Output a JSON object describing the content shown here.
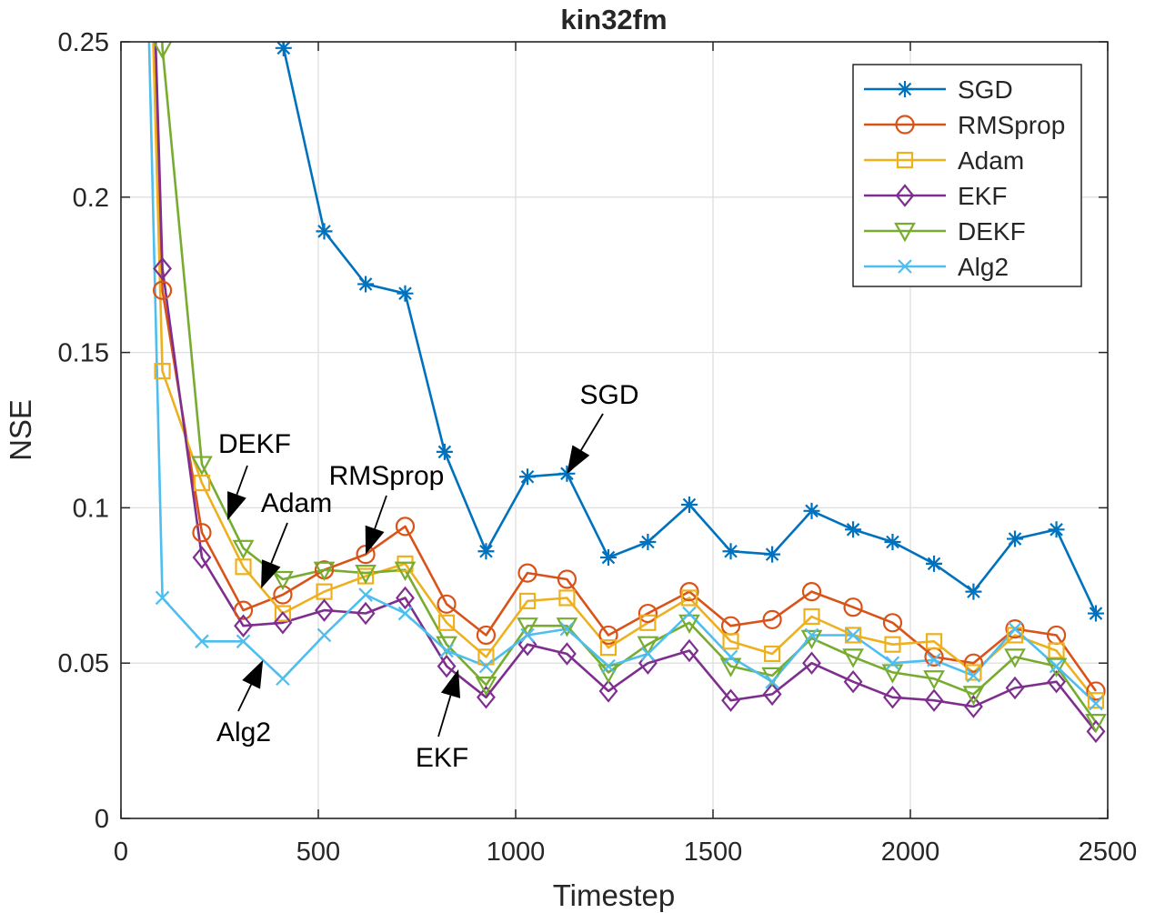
{
  "chart_data": {
    "type": "line",
    "title": "kin32fm",
    "xlabel": "Timestep",
    "ylabel": "NSE",
    "xlim": [
      0,
      2500
    ],
    "ylim": [
      0,
      0.25
    ],
    "xticks": [
      0,
      500,
      1000,
      1500,
      2000,
      2500
    ],
    "yticks": [
      0,
      0.05,
      0.1,
      0.15,
      0.2,
      0.25
    ],
    "xtick_labels": [
      "0",
      "500",
      "1000",
      "1500",
      "2000",
      "2500"
    ],
    "ytick_labels": [
      "0",
      "0.05",
      "0.1",
      "0.15",
      "0.2",
      "0.25"
    ],
    "grid": true,
    "legend_position": "top-right",
    "series": [
      {
        "name": "SGD",
        "color": "#0072BD",
        "marker": "asterisk",
        "line_points": [
          [
            345,
            0.5
          ],
          [
            412,
            0.248
          ],
          [
            515,
            0.189
          ],
          [
            620,
            0.172
          ],
          [
            720,
            0.169
          ],
          [
            820,
            0.118
          ],
          [
            925,
            0.086
          ],
          [
            1030,
            0.11
          ],
          [
            1130,
            0.111
          ],
          [
            1235,
            0.084
          ],
          [
            1335,
            0.089
          ],
          [
            1440,
            0.101
          ],
          [
            1545,
            0.086
          ],
          [
            1650,
            0.085
          ],
          [
            1750,
            0.099
          ],
          [
            1855,
            0.093
          ],
          [
            1955,
            0.089
          ],
          [
            2060,
            0.082
          ],
          [
            2160,
            0.073
          ],
          [
            2265,
            0.09
          ],
          [
            2370,
            0.093
          ],
          [
            2470,
            0.066
          ]
        ],
        "markers": [
          [
            412,
            0.248
          ],
          [
            515,
            0.189
          ],
          [
            620,
            0.172
          ],
          [
            720,
            0.169
          ],
          [
            820,
            0.118
          ],
          [
            925,
            0.086
          ],
          [
            1030,
            0.11
          ],
          [
            1130,
            0.111
          ],
          [
            1235,
            0.084
          ],
          [
            1335,
            0.089
          ],
          [
            1440,
            0.101
          ],
          [
            1545,
            0.086
          ],
          [
            1650,
            0.085
          ],
          [
            1750,
            0.099
          ],
          [
            1855,
            0.093
          ],
          [
            1955,
            0.089
          ],
          [
            2060,
            0.082
          ],
          [
            2160,
            0.073
          ],
          [
            2265,
            0.09
          ],
          [
            2370,
            0.093
          ],
          [
            2470,
            0.066
          ]
        ]
      },
      {
        "name": "RMSprop",
        "color": "#D95319",
        "marker": "circle",
        "line_points": [
          [
            5,
            0.6
          ],
          [
            105,
            0.17
          ],
          [
            205,
            0.092
          ],
          [
            310,
            0.067
          ],
          [
            410,
            0.072
          ],
          [
            515,
            0.08
          ],
          [
            620,
            0.085
          ],
          [
            720,
            0.094
          ],
          [
            825,
            0.069
          ],
          [
            925,
            0.059
          ],
          [
            1030,
            0.079
          ],
          [
            1130,
            0.077
          ],
          [
            1235,
            0.059
          ],
          [
            1335,
            0.066
          ],
          [
            1440,
            0.073
          ],
          [
            1545,
            0.062
          ],
          [
            1650,
            0.064
          ],
          [
            1750,
            0.073
          ],
          [
            1855,
            0.068
          ],
          [
            1955,
            0.063
          ],
          [
            2060,
            0.052
          ],
          [
            2160,
            0.05
          ],
          [
            2265,
            0.061
          ],
          [
            2370,
            0.059
          ],
          [
            2470,
            0.041
          ]
        ],
        "markers": [
          [
            105,
            0.17
          ],
          [
            205,
            0.092
          ],
          [
            310,
            0.067
          ],
          [
            410,
            0.072
          ],
          [
            515,
            0.08
          ],
          [
            620,
            0.085
          ],
          [
            720,
            0.094
          ],
          [
            825,
            0.069
          ],
          [
            925,
            0.059
          ],
          [
            1030,
            0.079
          ],
          [
            1130,
            0.077
          ],
          [
            1235,
            0.059
          ],
          [
            1335,
            0.066
          ],
          [
            1440,
            0.073
          ],
          [
            1545,
            0.062
          ],
          [
            1650,
            0.064
          ],
          [
            1750,
            0.073
          ],
          [
            1855,
            0.068
          ],
          [
            1955,
            0.063
          ],
          [
            2060,
            0.052
          ],
          [
            2160,
            0.05
          ],
          [
            2265,
            0.061
          ],
          [
            2370,
            0.059
          ],
          [
            2470,
            0.041
          ]
        ]
      },
      {
        "name": "Adam",
        "color": "#EDB120",
        "marker": "square",
        "line_points": [
          [
            5,
            0.6
          ],
          [
            105,
            0.144
          ],
          [
            205,
            0.108
          ],
          [
            310,
            0.081
          ],
          [
            410,
            0.066
          ],
          [
            515,
            0.073
          ],
          [
            620,
            0.078
          ],
          [
            720,
            0.082
          ],
          [
            825,
            0.063
          ],
          [
            925,
            0.052
          ],
          [
            1030,
            0.07
          ],
          [
            1130,
            0.071
          ],
          [
            1235,
            0.055
          ],
          [
            1335,
            0.063
          ],
          [
            1440,
            0.071
          ],
          [
            1545,
            0.057
          ],
          [
            1650,
            0.053
          ],
          [
            1750,
            0.065
          ],
          [
            1855,
            0.059
          ],
          [
            1955,
            0.056
          ],
          [
            2060,
            0.057
          ],
          [
            2160,
            0.047
          ],
          [
            2265,
            0.059
          ],
          [
            2370,
            0.054
          ],
          [
            2470,
            0.038
          ]
        ],
        "markers": [
          [
            105,
            0.144
          ],
          [
            205,
            0.108
          ],
          [
            310,
            0.081
          ],
          [
            410,
            0.066
          ],
          [
            515,
            0.073
          ],
          [
            620,
            0.078
          ],
          [
            720,
            0.082
          ],
          [
            825,
            0.063
          ],
          [
            925,
            0.052
          ],
          [
            1030,
            0.07
          ],
          [
            1130,
            0.071
          ],
          [
            1235,
            0.055
          ],
          [
            1335,
            0.063
          ],
          [
            1440,
            0.071
          ],
          [
            1545,
            0.057
          ],
          [
            1650,
            0.053
          ],
          [
            1750,
            0.065
          ],
          [
            1855,
            0.059
          ],
          [
            1955,
            0.056
          ],
          [
            2060,
            0.057
          ],
          [
            2160,
            0.047
          ],
          [
            2265,
            0.059
          ],
          [
            2370,
            0.054
          ],
          [
            2470,
            0.038
          ]
        ]
      },
      {
        "name": "EKF",
        "color": "#7E2F8E",
        "marker": "diamond",
        "line_points": [
          [
            5,
            0.6
          ],
          [
            105,
            0.177
          ],
          [
            205,
            0.084
          ],
          [
            310,
            0.062
          ],
          [
            410,
            0.063
          ],
          [
            515,
            0.067
          ],
          [
            620,
            0.066
          ],
          [
            720,
            0.071
          ],
          [
            825,
            0.049
          ],
          [
            925,
            0.039
          ],
          [
            1030,
            0.056
          ],
          [
            1130,
            0.053
          ],
          [
            1235,
            0.041
          ],
          [
            1335,
            0.05
          ],
          [
            1440,
            0.054
          ],
          [
            1545,
            0.038
          ],
          [
            1650,
            0.04
          ],
          [
            1750,
            0.05
          ],
          [
            1855,
            0.044
          ],
          [
            1955,
            0.039
          ],
          [
            2060,
            0.038
          ],
          [
            2160,
            0.036
          ],
          [
            2265,
            0.042
          ],
          [
            2370,
            0.044
          ],
          [
            2470,
            0.028
          ]
        ],
        "markers": [
          [
            105,
            0.177
          ],
          [
            205,
            0.084
          ],
          [
            310,
            0.062
          ],
          [
            410,
            0.063
          ],
          [
            515,
            0.067
          ],
          [
            620,
            0.066
          ],
          [
            720,
            0.071
          ],
          [
            825,
            0.049
          ],
          [
            925,
            0.039
          ],
          [
            1030,
            0.056
          ],
          [
            1130,
            0.053
          ],
          [
            1235,
            0.041
          ],
          [
            1335,
            0.05
          ],
          [
            1440,
            0.054
          ],
          [
            1545,
            0.038
          ],
          [
            1650,
            0.04
          ],
          [
            1750,
            0.05
          ],
          [
            1855,
            0.044
          ],
          [
            1955,
            0.039
          ],
          [
            2060,
            0.038
          ],
          [
            2160,
            0.036
          ],
          [
            2265,
            0.042
          ],
          [
            2370,
            0.044
          ],
          [
            2470,
            0.028
          ]
        ]
      },
      {
        "name": "DEKF",
        "color": "#77AC30",
        "marker": "triangle-down",
        "line_points": [
          [
            5,
            0.6
          ],
          [
            105,
            0.248
          ],
          [
            205,
            0.114
          ],
          [
            310,
            0.087
          ],
          [
            410,
            0.077
          ],
          [
            515,
            0.08
          ],
          [
            620,
            0.079
          ],
          [
            720,
            0.08
          ],
          [
            825,
            0.056
          ],
          [
            925,
            0.043
          ],
          [
            1030,
            0.062
          ],
          [
            1130,
            0.062
          ],
          [
            1235,
            0.047
          ],
          [
            1335,
            0.056
          ],
          [
            1440,
            0.063
          ],
          [
            1545,
            0.049
          ],
          [
            1650,
            0.046
          ],
          [
            1750,
            0.058
          ],
          [
            1855,
            0.052
          ],
          [
            1955,
            0.047
          ],
          [
            2060,
            0.045
          ],
          [
            2160,
            0.04
          ],
          [
            2265,
            0.052
          ],
          [
            2370,
            0.049
          ],
          [
            2470,
            0.031
          ]
        ],
        "markers": [
          [
            105,
            0.248
          ],
          [
            205,
            0.114
          ],
          [
            310,
            0.087
          ],
          [
            410,
            0.077
          ],
          [
            515,
            0.08
          ],
          [
            620,
            0.079
          ],
          [
            720,
            0.08
          ],
          [
            825,
            0.056
          ],
          [
            925,
            0.043
          ],
          [
            1030,
            0.062
          ],
          [
            1130,
            0.062
          ],
          [
            1235,
            0.047
          ],
          [
            1335,
            0.056
          ],
          [
            1440,
            0.063
          ],
          [
            1545,
            0.049
          ],
          [
            1650,
            0.046
          ],
          [
            1750,
            0.058
          ],
          [
            1855,
            0.052
          ],
          [
            1955,
            0.047
          ],
          [
            2060,
            0.045
          ],
          [
            2160,
            0.04
          ],
          [
            2265,
            0.052
          ],
          [
            2370,
            0.049
          ],
          [
            2470,
            0.031
          ]
        ]
      },
      {
        "name": "Alg2",
        "color": "#4DBEEE",
        "marker": "x",
        "line_points": [
          [
            5,
            0.6
          ],
          [
            105,
            0.071
          ],
          [
            205,
            0.057
          ],
          [
            310,
            0.057
          ],
          [
            410,
            0.045
          ],
          [
            515,
            0.059
          ],
          [
            620,
            0.072
          ],
          [
            720,
            0.066
          ],
          [
            825,
            0.054
          ],
          [
            925,
            0.049
          ],
          [
            1030,
            0.059
          ],
          [
            1130,
            0.061
          ],
          [
            1235,
            0.049
          ],
          [
            1335,
            0.053
          ],
          [
            1440,
            0.066
          ],
          [
            1545,
            0.052
          ],
          [
            1650,
            0.044
          ],
          [
            1750,
            0.059
          ],
          [
            1855,
            0.059
          ],
          [
            1955,
            0.05
          ],
          [
            2060,
            0.051
          ],
          [
            2160,
            0.046
          ],
          [
            2265,
            0.061
          ],
          [
            2370,
            0.049
          ],
          [
            2470,
            0.037
          ]
        ],
        "markers": [
          [
            105,
            0.071
          ],
          [
            205,
            0.057
          ],
          [
            310,
            0.057
          ],
          [
            410,
            0.045
          ],
          [
            515,
            0.059
          ],
          [
            620,
            0.072
          ],
          [
            720,
            0.066
          ],
          [
            825,
            0.054
          ],
          [
            925,
            0.049
          ],
          [
            1030,
            0.059
          ],
          [
            1130,
            0.061
          ],
          [
            1235,
            0.049
          ],
          [
            1335,
            0.053
          ],
          [
            1440,
            0.066
          ],
          [
            1545,
            0.052
          ],
          [
            1650,
            0.044
          ],
          [
            1750,
            0.059
          ],
          [
            1855,
            0.059
          ],
          [
            1955,
            0.05
          ],
          [
            2060,
            0.051
          ],
          [
            2160,
            0.046
          ],
          [
            2265,
            0.061
          ],
          [
            2370,
            0.049
          ],
          [
            2470,
            0.037
          ]
        ]
      }
    ],
    "annotations": [
      {
        "text": "SGD",
        "points_to": [
          1130,
          0.111
        ]
      },
      {
        "text": "RMSprop",
        "points_to": [
          620,
          0.085
        ]
      },
      {
        "text": "DEKF",
        "points_to": [
          270,
          0.096
        ]
      },
      {
        "text": "Adam",
        "points_to": [
          355,
          0.074
        ]
      },
      {
        "text": "Alg2",
        "points_to": [
          360,
          0.051
        ]
      },
      {
        "text": "EKF",
        "points_to": [
          855,
          0.048
        ]
      }
    ]
  }
}
